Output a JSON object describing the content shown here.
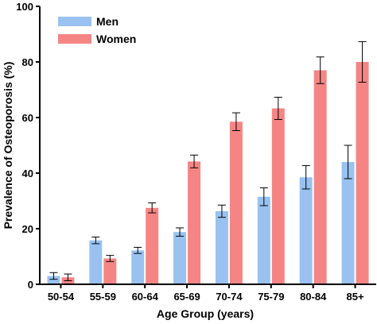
{
  "chart_data": {
    "type": "bar",
    "xlabel": "Age Group (years)",
    "ylabel": "Prevalence of Osteoporosis (%)",
    "ylim": [
      0,
      100
    ],
    "yticks": [
      0,
      20,
      40,
      60,
      80,
      100
    ],
    "categories": [
      "50-54",
      "55-59",
      "60-64",
      "65-69",
      "70-74",
      "75-79",
      "80-84",
      "85+"
    ],
    "series": [
      {
        "name": "Men",
        "color": "#99c2f0",
        "values": [
          3.0,
          15.8,
          12.2,
          18.8,
          26.3,
          31.5,
          38.5,
          44.0
        ],
        "error": [
          1.2,
          1.2,
          1.1,
          1.5,
          2.2,
          3.2,
          4.2,
          6.0
        ]
      },
      {
        "name": "Women",
        "color": "#f58585",
        "values": [
          2.5,
          9.3,
          27.5,
          44.2,
          58.5,
          63.3,
          77.0,
          80.0
        ],
        "error": [
          1.2,
          1.1,
          1.8,
          2.3,
          3.2,
          4.0,
          4.8,
          7.3
        ]
      }
    ],
    "legend": "top-left",
    "grid": false,
    "error_bars": true
  }
}
